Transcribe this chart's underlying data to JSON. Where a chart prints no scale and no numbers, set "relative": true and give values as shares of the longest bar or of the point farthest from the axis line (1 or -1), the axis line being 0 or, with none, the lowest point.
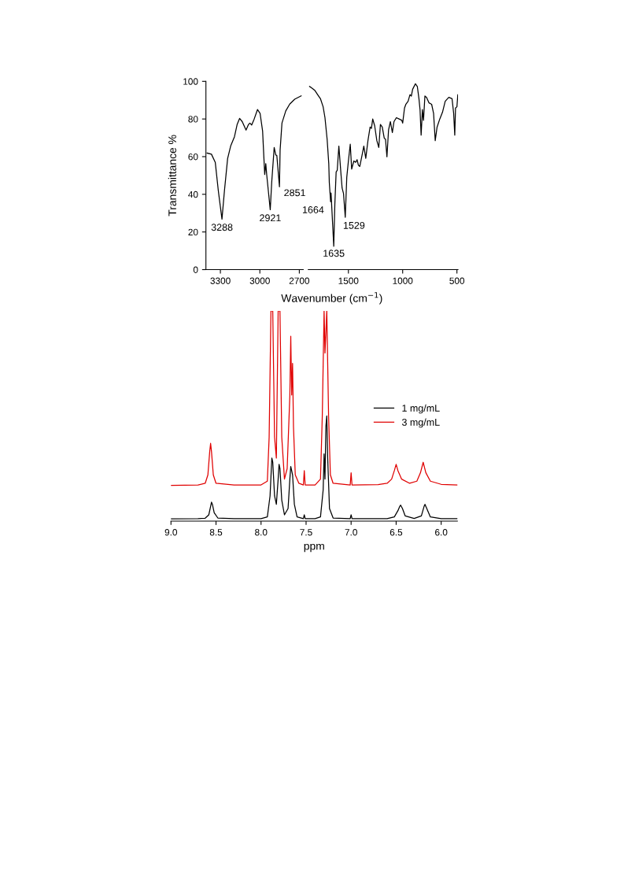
{
  "chart_data": [
    {
      "type": "line",
      "ylabel": "Transmittance %",
      "xlim": [
        3410,
        2670
      ],
      "xticks": [
        3300,
        3000,
        2700
      ],
      "ylim": [
        0,
        100
      ],
      "yticks": [
        0,
        20,
        40,
        60,
        80,
        100
      ],
      "grid": false,
      "legend": false,
      "series": [
        {
          "color": "#000000",
          "x": [
            3401,
            3368,
            3339,
            3316,
            3288,
            3269,
            3245,
            3222,
            3193,
            3173,
            3154,
            3134,
            3105,
            3086,
            3076,
            3062,
            3043,
            3018,
            2998,
            2979,
            2969,
            2963,
            2955,
            2948,
            2921,
            2910,
            2891,
            2879,
            2871,
            2851,
            2846,
            2832,
            2803,
            2773,
            2735,
            2686
          ],
          "values": [
            61.9,
            61.3,
            57,
            42,
            26.8,
            42,
            59,
            65.6,
            70.6,
            77,
            80.3,
            78.6,
            74.1,
            77.1,
            77.8,
            76.8,
            80,
            85,
            82.9,
            73.5,
            59,
            50.5,
            56.3,
            50.5,
            31.8,
            46.2,
            64.9,
            60.9,
            60.6,
            44,
            63.5,
            77.8,
            84.3,
            87.9,
            90.5,
            92.3
          ]
        }
      ],
      "annotations": [
        {
          "text": "3288",
          "x": 3288,
          "y": 26.8
        },
        {
          "text": "2921",
          "x": 2921,
          "y": 31.8
        },
        {
          "text": "2851",
          "x": 2851,
          "y": 44
        }
      ]
    },
    {
      "type": "line",
      "xlabel": "Wavenumber (cm$^{−1}$)",
      "xlim": [
        1870,
        490
      ],
      "xticks": [
        1500,
        1000,
        500
      ],
      "ylim": [
        0,
        100
      ],
      "yticks": [
        0,
        20,
        40,
        60,
        80,
        100
      ],
      "tick_labels": "x",
      "grid": false,
      "legend": false,
      "series": [
        {
          "color": "#000000",
          "x": [
            1858,
            1833,
            1808,
            1783,
            1758,
            1733,
            1716,
            1696,
            1681,
            1676,
            1664,
            1660,
            1635,
            1625,
            1613,
            1603,
            1588,
            1570,
            1558,
            1545,
            1529,
            1515,
            1500,
            1483,
            1470,
            1450,
            1433,
            1420,
            1408,
            1395,
            1375,
            1358,
            1340,
            1320,
            1300,
            1288,
            1276,
            1258,
            1238,
            1220,
            1205,
            1188,
            1170,
            1158,
            1145,
            1130,
            1113,
            1095,
            1080,
            1058,
            1033,
            1008,
            1000,
            983,
            970,
            950,
            933,
            920,
            908,
            883,
            865,
            850,
            840,
            830,
            818,
            808,
            795,
            780,
            758,
            733,
            715,
            700,
            683,
            658,
            633,
            608,
            575,
            545,
            530,
            520,
            513,
            500,
            492
          ],
          "values": [
            97.3,
            96.3,
            95.1,
            92.9,
            90.8,
            86.5,
            80.7,
            69.2,
            56.3,
            46.2,
            36.1,
            40.7,
            12.4,
            34.7,
            51.9,
            52.7,
            65.6,
            51.9,
            43.3,
            40.4,
            27.8,
            49.1,
            57.7,
            66.6,
            53.4,
            57.7,
            57,
            58.4,
            55.5,
            54.8,
            60.6,
            65.6,
            59.1,
            68.5,
            75.7,
            75,
            80,
            76.4,
            68.5,
            64.9,
            77.1,
            75.7,
            69.9,
            69.2,
            59.9,
            74.3,
            78.6,
            72.8,
            78.6,
            80.7,
            80,
            79.3,
            77.8,
            85.8,
            87.9,
            89.4,
            92.9,
            92.2,
            95.8,
            98.7,
            97.3,
            90.8,
            85,
            71.4,
            85,
            79.3,
            92.2,
            91.5,
            88.6,
            87.8,
            82.9,
            68.5,
            75.7,
            80,
            83.6,
            89.4,
            91.5,
            90.8,
            82.9,
            71.4,
            85.8,
            86.5,
            92.9
          ]
        }
      ],
      "annotations": [
        {
          "text": "1664",
          "x": 1664,
          "y": 36.1
        },
        {
          "text": "1635",
          "x": 1635,
          "y": 12.4
        },
        {
          "text": "1529",
          "x": 1529,
          "y": 27.8
        }
      ]
    },
    {
      "type": "line",
      "relative": true,
      "xlabel": "ppm",
      "xlim": [
        9.0,
        5.82
      ],
      "xticks": [
        {
          "value": 9,
          "label": "9.0"
        },
        8.5,
        {
          "value": 8,
          "label": "8.0"
        },
        7.5,
        {
          "value": 7,
          "label": "7.0"
        },
        6.5,
        {
          "value": 6,
          "label": "6.0"
        }
      ],
      "grid": false,
      "legend": "right",
      "series": [
        {
          "name": "1 mg/mL",
          "color": "#000000",
          "x": [
            9.0,
            8.7,
            8.62,
            8.58,
            8.56,
            8.55,
            8.54,
            8.52,
            8.48,
            8.3,
            8.0,
            7.93,
            7.9,
            7.88,
            7.87,
            7.85,
            7.83,
            7.81,
            7.8,
            7.79,
            7.77,
            7.74,
            7.7,
            7.68,
            7.67,
            7.66,
            7.65,
            7.63,
            7.6,
            7.53,
            7.52,
            7.51,
            7.4,
            7.34,
            7.31,
            7.3,
            7.29,
            7.28,
            7.27,
            7.26,
            7.24,
            7.2,
            7.01,
            7.0,
            6.99,
            6.6,
            6.52,
            6.48,
            6.46,
            6.45,
            6.43,
            6.4,
            6.3,
            6.22,
            6.19,
            6.18,
            6.16,
            6.12,
            6.0,
            5.82
          ],
          "values": [
            0.011,
            0.012,
            0.014,
            0.03,
            0.07,
            0.09,
            0.08,
            0.04,
            0.015,
            0.012,
            0.012,
            0.02,
            0.12,
            0.3,
            0.28,
            0.12,
            0.08,
            0.2,
            0.27,
            0.25,
            0.1,
            0.03,
            0.06,
            0.2,
            0.26,
            0.24,
            0.22,
            0.08,
            0.02,
            0.012,
            0.03,
            0.012,
            0.012,
            0.02,
            0.15,
            0.32,
            0.2,
            0.45,
            0.5,
            0.3,
            0.06,
            0.015,
            0.012,
            0.03,
            0.012,
            0.012,
            0.02,
            0.05,
            0.07,
            0.076,
            0.06,
            0.025,
            0.013,
            0.025,
            0.07,
            0.08,
            0.06,
            0.02,
            0.012,
            0.012
          ]
        },
        {
          "name": "3 mg/mL",
          "color": "#e00000",
          "x": [
            9.0,
            8.7,
            8.62,
            8.59,
            8.57,
            8.56,
            8.55,
            8.53,
            8.5,
            8.3,
            8.0,
            7.93,
            7.91,
            7.89,
            7.87,
            7.85,
            7.83,
            7.81,
            7.79,
            7.77,
            7.74,
            7.71,
            7.68,
            7.67,
            7.66,
            7.65,
            7.64,
            7.62,
            7.58,
            7.53,
            7.52,
            7.51,
            7.4,
            7.34,
            7.32,
            7.3,
            7.29,
            7.27,
            7.25,
            7.23,
            7.2,
            7.01,
            7.0,
            6.99,
            6.7,
            6.6,
            6.55,
            6.52,
            6.5,
            6.48,
            6.44,
            6.35,
            6.27,
            6.23,
            6.2,
            6.17,
            6.12,
            6.0,
            5.82
          ],
          "values": [
            0.17,
            0.172,
            0.18,
            0.22,
            0.33,
            0.37,
            0.33,
            0.22,
            0.18,
            0.172,
            0.172,
            0.19,
            0.4,
            1,
            1,
            0.4,
            0.3,
            1,
            1,
            0.4,
            0.2,
            0.25,
            0.6,
            0.88,
            0.6,
            0.75,
            0.45,
            0.22,
            0.18,
            0.172,
            0.24,
            0.172,
            0.172,
            0.2,
            0.5,
            1,
            0.8,
            1,
            0.5,
            0.22,
            0.18,
            0.172,
            0.23,
            0.172,
            0.174,
            0.18,
            0.2,
            0.24,
            0.27,
            0.24,
            0.2,
            0.18,
            0.19,
            0.23,
            0.28,
            0.23,
            0.19,
            0.175,
            0.172
          ]
        }
      ]
    }
  ]
}
